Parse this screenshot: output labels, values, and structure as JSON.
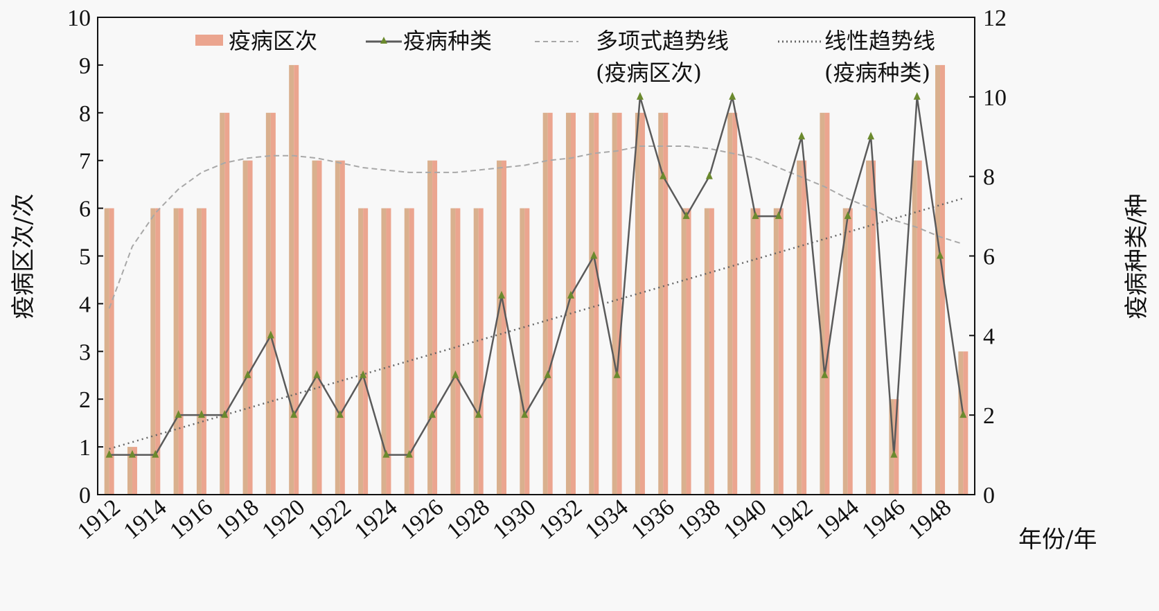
{
  "chart_data": {
    "type": "bar",
    "title": "",
    "xlabel": "年份/年",
    "ylabel": "疫病区次/次",
    "y2label": "疫病种类/种",
    "ylim": [
      0,
      10
    ],
    "y2lim": [
      0,
      12
    ],
    "yticks": [
      "0",
      "1",
      "2",
      "3",
      "4",
      "5",
      "6",
      "7",
      "8",
      "9",
      "10"
    ],
    "y2ticks": [
      "0",
      "2",
      "4",
      "6",
      "8",
      "10",
      "12"
    ],
    "categories": [
      "1912",
      "1913",
      "1914",
      "1915",
      "1916",
      "1917",
      "1918",
      "1919",
      "1920",
      "1921",
      "1922",
      "1923",
      "1924",
      "1925",
      "1926",
      "1927",
      "1928",
      "1929",
      "1930",
      "1931",
      "1932",
      "1933",
      "1934",
      "1935",
      "1936",
      "1937",
      "1938",
      "1939",
      "1940",
      "1941",
      "1942",
      "1943",
      "1944",
      "1945",
      "1946",
      "1947",
      "1948",
      "1949"
    ],
    "xtick_labels": [
      "1912",
      "1914",
      "1916",
      "1918",
      "1920",
      "1922",
      "1924",
      "1926",
      "1928",
      "1930",
      "1932",
      "1934",
      "1936",
      "1938",
      "1940",
      "1942",
      "1944",
      "1946",
      "1948"
    ],
    "series": [
      {
        "name": "疫病区次",
        "type": "bar",
        "axis": "left",
        "values": [
          6,
          1,
          6,
          6,
          6,
          8,
          7,
          8,
          9,
          7,
          7,
          6,
          6,
          6,
          7,
          6,
          6,
          7,
          6,
          8,
          8,
          8,
          8,
          8,
          8,
          6,
          6,
          8,
          6,
          6,
          7,
          8,
          6,
          7,
          2,
          7,
          9,
          3
        ]
      },
      {
        "name": "疫病种类",
        "type": "line",
        "axis": "right",
        "values": [
          1,
          1,
          1,
          2,
          2,
          2,
          3,
          4,
          2,
          3,
          2,
          3,
          1,
          1,
          2,
          3,
          2,
          5,
          2,
          3,
          5,
          6,
          3,
          10,
          8,
          7,
          8,
          10,
          7,
          7,
          9,
          3,
          7,
          9,
          1,
          10,
          6,
          2
        ]
      },
      {
        "name": "多项式趋势线",
        "name2": "(疫病区次)",
        "type": "trend-polynomial",
        "axis": "left",
        "values": [
          3.9,
          5.2,
          5.9,
          6.4,
          6.75,
          6.95,
          7.05,
          7.1,
          7.1,
          7.05,
          6.95,
          6.85,
          6.8,
          6.75,
          6.75,
          6.75,
          6.8,
          6.85,
          6.9,
          7.0,
          7.05,
          7.15,
          7.2,
          7.3,
          7.3,
          7.3,
          7.25,
          7.15,
          7.05,
          6.85,
          6.65,
          6.45,
          6.2,
          6.0,
          5.75,
          5.6,
          5.4,
          5.25
        ]
      },
      {
        "name": "线性趋势线",
        "name2": "(疫病种类)",
        "type": "trend-linear",
        "axis": "right",
        "start": 1.15,
        "end": 7.45
      }
    ],
    "legend_position": "top",
    "grid": false,
    "colors": {
      "bar": "#eba58f",
      "bar_alt": "#d9b08e",
      "line": "#5a5a5a",
      "marker": "#6b8a2e",
      "poly": "#a8a8a8",
      "linear": "#666666"
    }
  }
}
